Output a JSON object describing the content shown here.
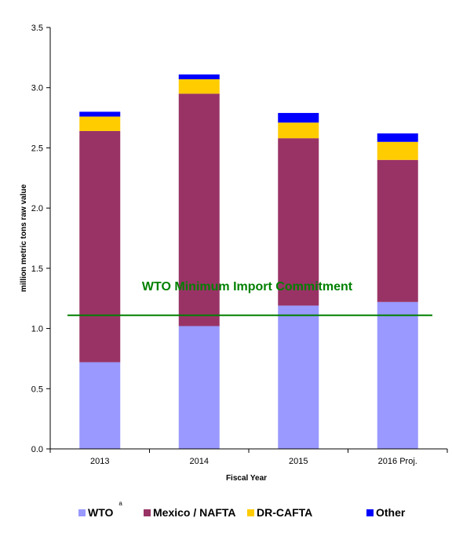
{
  "chart_data": {
    "type": "bar",
    "stacked": true,
    "categories": [
      "2013",
      "2014",
      "2015",
      "2016 Proj."
    ],
    "series": [
      {
        "name": "WTO",
        "name_superscript": "a",
        "color": "#9999FF",
        "values": [
          0.72,
          1.02,
          1.19,
          1.22
        ]
      },
      {
        "name": "Mexico / NAFTA",
        "color": "#993366",
        "values": [
          1.92,
          1.93,
          1.39,
          1.18
        ]
      },
      {
        "name": "DR-CAFTA",
        "color": "#FFCC00",
        "values": [
          0.12,
          0.12,
          0.13,
          0.15
        ]
      },
      {
        "name": "Other",
        "color": "#0000FF",
        "values": [
          0.04,
          0.04,
          0.08,
          0.07
        ]
      }
    ],
    "xlabel": "Fiscal Year",
    "ylabel": "million metric tons raw value",
    "ylim": [
      0,
      3.5
    ],
    "yticks": [
      "0.0",
      "0.5",
      "1.0",
      "1.5",
      "2.0",
      "2.5",
      "3.0",
      "3.5"
    ],
    "grid": false,
    "legend_position": "bottom",
    "reference_line": {
      "label": "WTO Minimum Import Commitment",
      "value": 1.11,
      "color": "#008000"
    }
  }
}
